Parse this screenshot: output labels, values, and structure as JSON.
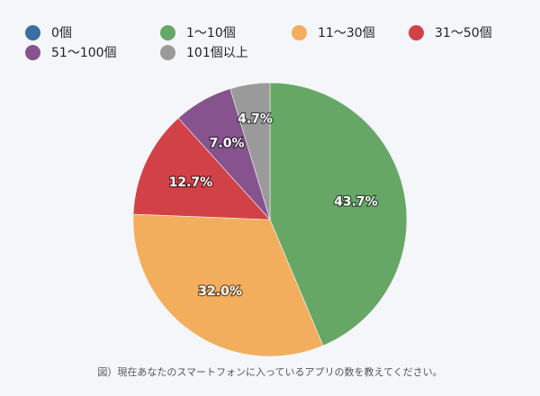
{
  "chart_data": {
    "type": "pie",
    "title": "",
    "categories": [
      "0個",
      "1〜10個",
      "11〜30個",
      "31〜50個",
      "51〜100個",
      "101個以上"
    ],
    "values": [
      0.0,
      43.7,
      32.0,
      12.7,
      7.0,
      4.7
    ],
    "value_labels": [
      "",
      "43.7%",
      "32.0%",
      "12.7%",
      "7.0%",
      "4.7%"
    ],
    "colors": [
      "#3a6fa3",
      "#67a766",
      "#f2ae5d",
      "#d34148",
      "#86538e",
      "#9a9a9a"
    ],
    "start": "top",
    "direction": "clockwise",
    "legend_position": "top"
  },
  "caption": "図）現在あなたのスマートフォンに入っているアプリの数を教えてください。"
}
